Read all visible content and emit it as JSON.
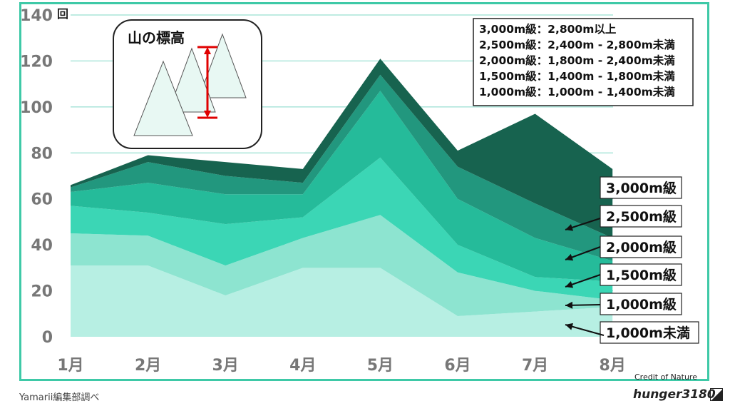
{
  "chart_data": {
    "type": "area",
    "stacked": true,
    "unit_label": "回",
    "categories": [
      "1月",
      "2月",
      "3月",
      "4月",
      "5月",
      "6月",
      "7月",
      "8月"
    ],
    "ylim": [
      0,
      140
    ],
    "yticks": [
      0,
      20,
      40,
      60,
      80,
      100,
      120,
      140
    ],
    "grid": true,
    "series": [
      {
        "name": "1,000m未満",
        "values": [
          31,
          31,
          18,
          30,
          30,
          9,
          11,
          13
        ],
        "color": "#b7efe3"
      },
      {
        "name": "1,000m級",
        "values": [
          14,
          13,
          13,
          13,
          23,
          19,
          9,
          3
        ],
        "color": "#8de4d0"
      },
      {
        "name": "1,500m級",
        "values": [
          12,
          10,
          18,
          9,
          25,
          12,
          6,
          8
        ],
        "color": "#3bd6b5"
      },
      {
        "name": "2,000m級",
        "values": [
          6,
          13,
          13,
          10,
          29,
          20,
          17,
          9
        ],
        "color": "#25bb9a"
      },
      {
        "name": "2,500m級",
        "values": [
          2,
          9,
          8,
          5,
          7,
          14,
          15,
          10
        ],
        "color": "#22977e"
      },
      {
        "name": "3,000m級",
        "values": [
          1,
          3,
          6,
          6,
          7,
          7,
          39,
          30
        ],
        "color": "#17634f"
      }
    ],
    "series_labels": [
      "3,000m級",
      "2,500m級",
      "2,000m級",
      "1,500m級",
      "1,000m級",
      "1,000m未満"
    ],
    "legend_title": "",
    "legend": [
      "3,000m級：2,800m以上",
      "2,500m級：2,400m - 2,800m未満",
      "2,000m級：1,800m - 2,400m未満",
      "1,500m級：1,400m - 1,800m未満",
      "1,000m級：1,000m - 1,400m未満"
    ],
    "inset_title": "山の標高"
  },
  "source": "Yamarii編集部調べ",
  "credit": {
    "label": "Credit of Nature",
    "brand": "hunger3180"
  },
  "colors": {
    "frame": "#3ec9a7",
    "grid": "#7fd8c6",
    "marker": "#e00000"
  }
}
